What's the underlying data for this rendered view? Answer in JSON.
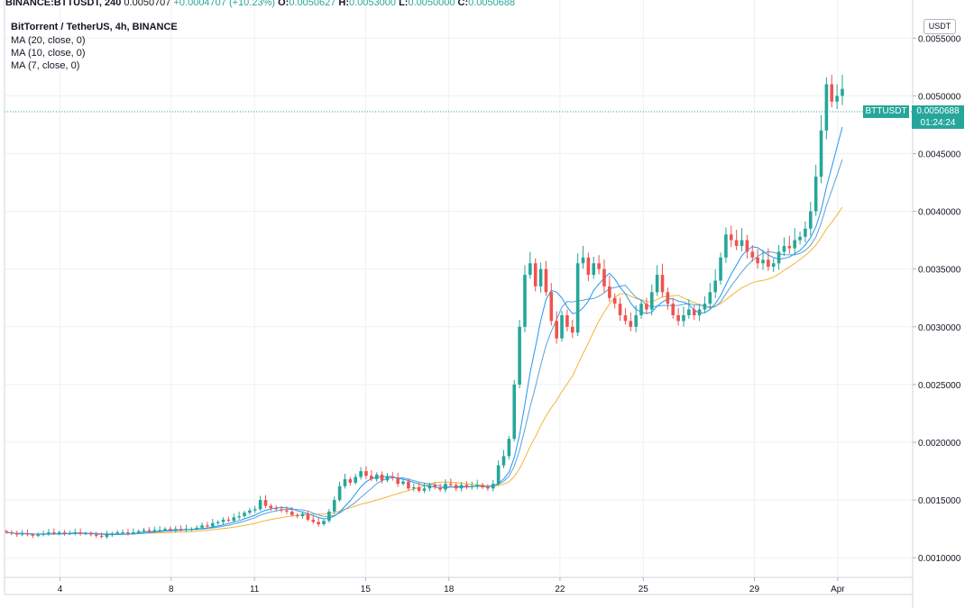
{
  "header": {
    "symbol": "BINANCE:BTTUSDT, 240",
    "last": "0.0050707",
    "change": "+0.0004707 (+10.23%)",
    "o_label": "O:",
    "o_value": "0.0050627",
    "h_label": "H:",
    "h_value": "0.0053000",
    "l_label": "L:",
    "l_value": "0.0050000",
    "c_label": "C:",
    "c_value": "0.0050688"
  },
  "legend": {
    "title": "BitTorrent / TetherUS, 4h, BINANCE",
    "ma20": "MA (20, close, 0)",
    "ma10": "MA (10, close, 0)",
    "ma7": "MA (7, close, 0)"
  },
  "currency_button": "USDT",
  "price_tag": {
    "symbol": "BTTUSDT",
    "price": "0.0050688",
    "countdown": "01:24:24"
  },
  "colors": {
    "up": "#26a69a",
    "down": "#ef5350",
    "ma20": "#f4b533",
    "ma10": "#5aa1d8",
    "ma7": "#2196f3",
    "grid": "#eef0f3"
  },
  "chart_data": {
    "type": "candlestick",
    "title": "BitTorrent / TetherUS, 4h, BINANCE",
    "y_ticks": [
      "0.0010000",
      "0.0015000",
      "0.0020000",
      "0.0025000",
      "0.0030000",
      "0.0035000",
      "0.0040000",
      "0.0045000",
      "0.0050000",
      "0.0055000"
    ],
    "ylim": [
      0.00083,
      0.00583
    ],
    "x_ticks": [
      {
        "label": "4",
        "day": 4
      },
      {
        "label": "8",
        "day": 8
      },
      {
        "label": "11",
        "day": 11
      },
      {
        "label": "15",
        "day": 15
      },
      {
        "label": "18",
        "day": 18
      },
      {
        "label": "22",
        "day": 22
      },
      {
        "label": "25",
        "day": 25
      },
      {
        "label": "29",
        "day": 29
      },
      {
        "label": "Apr",
        "day": 32
      }
    ],
    "xlim": [
      2.0,
      34.7
    ],
    "series_close": [
      0.00122,
      0.00121,
      0.0012,
      0.00121,
      0.0012,
      0.00119,
      0.0012,
      0.00121,
      0.00122,
      0.00121,
      0.00122,
      0.00121,
      0.00121,
      0.00122,
      0.00121,
      0.00121,
      0.0012,
      0.00119,
      0.00118,
      0.0012,
      0.00121,
      0.00122,
      0.00122,
      0.00121,
      0.00122,
      0.00123,
      0.00124,
      0.00123,
      0.00124,
      0.00124,
      0.00125,
      0.00124,
      0.00125,
      0.00124,
      0.00125,
      0.00125,
      0.00126,
      0.00128,
      0.00127,
      0.0013,
      0.00131,
      0.00133,
      0.00132,
      0.00135,
      0.00136,
      0.00139,
      0.00141,
      0.00142,
      0.0015,
      0.00145,
      0.00143,
      0.00142,
      0.00141,
      0.0014,
      0.00137,
      0.00136,
      0.00138,
      0.00133,
      0.00131,
      0.00129,
      0.00132,
      0.0014,
      0.0015,
      0.00162,
      0.00168,
      0.00165,
      0.0017,
      0.00175,
      0.00171,
      0.00168,
      0.00172,
      0.00167,
      0.0017,
      0.00169,
      0.00164,
      0.00166,
      0.0016,
      0.00161,
      0.00158,
      0.0016,
      0.00163,
      0.00161,
      0.00159,
      0.00164,
      0.00163,
      0.0016,
      0.00163,
      0.00161,
      0.00162,
      0.00163,
      0.00161,
      0.0016,
      0.00164,
      0.0018,
      0.00188,
      0.00203,
      0.0025,
      0.003,
      0.00345,
      0.00355,
      0.00335,
      0.0035,
      0.0033,
      0.00305,
      0.0029,
      0.0031,
      0.003,
      0.00295,
      0.00355,
      0.0036,
      0.00345,
      0.00355,
      0.0035,
      0.00335,
      0.00325,
      0.0032,
      0.0031,
      0.00305,
      0.003,
      0.0031,
      0.0032,
      0.00315,
      0.0033,
      0.00345,
      0.0033,
      0.0032,
      0.0031,
      0.00305,
      0.0031,
      0.00315,
      0.0031,
      0.00315,
      0.0032,
      0.0033,
      0.0034,
      0.0036,
      0.0038,
      0.00375,
      0.0037,
      0.00375,
      0.00365,
      0.0036,
      0.00355,
      0.00358,
      0.00352,
      0.00355,
      0.00365,
      0.0037,
      0.00368,
      0.00375,
      0.00378,
      0.00385,
      0.004,
      0.0043,
      0.0047,
      0.0051,
      0.00495,
      0.005,
      0.00506
    ],
    "series_open_first": 0.00123,
    "mas": [
      {
        "name": "MA (20, close, 0)",
        "period": 20
      },
      {
        "name": "MA (10, close, 0)",
        "period": 10
      },
      {
        "name": "MA (7, close, 0)",
        "period": 7
      }
    ],
    "last_price": 0.0050688,
    "grid": true
  }
}
